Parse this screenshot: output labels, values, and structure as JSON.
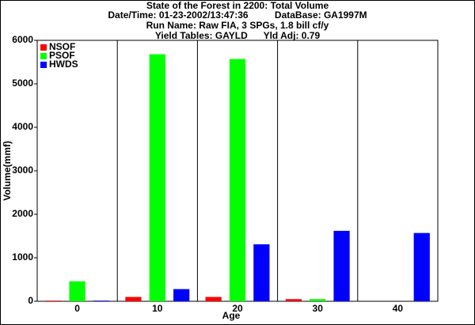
{
  "chart_data": {
    "type": "bar",
    "title": [
      "State of the Forest in 2200: Total Volume",
      "Date/Time: 01-23-2002/13:47:36          DataBase: GA1997M",
      "Run Name: Raw FIA, 3 SPGs, 1.8 bill cf/y",
      "Yield Tables: GAYLD      Yld Adj: 0.79"
    ],
    "x_label": "Age",
    "y_label": "Volume(mmf)",
    "categories": [
      "0",
      "10",
      "20",
      "30",
      "40"
    ],
    "series": [
      {
        "name": "NSOF",
        "color": "#ff0000",
        "values": [
          15,
          100,
          100,
          50,
          0
        ]
      },
      {
        "name": "PSOF",
        "color": "#00ff00",
        "values": [
          460,
          5680,
          5570,
          50,
          0
        ]
      },
      {
        "name": "HWDS",
        "color": "#0000ff",
        "values": [
          15,
          280,
          1310,
          1620,
          1570
        ]
      }
    ],
    "ylim": [
      0,
      6000
    ],
    "yticks": [
      0,
      1000,
      2000,
      3000,
      4000,
      5000,
      6000
    ],
    "legend": "upper-left"
  }
}
